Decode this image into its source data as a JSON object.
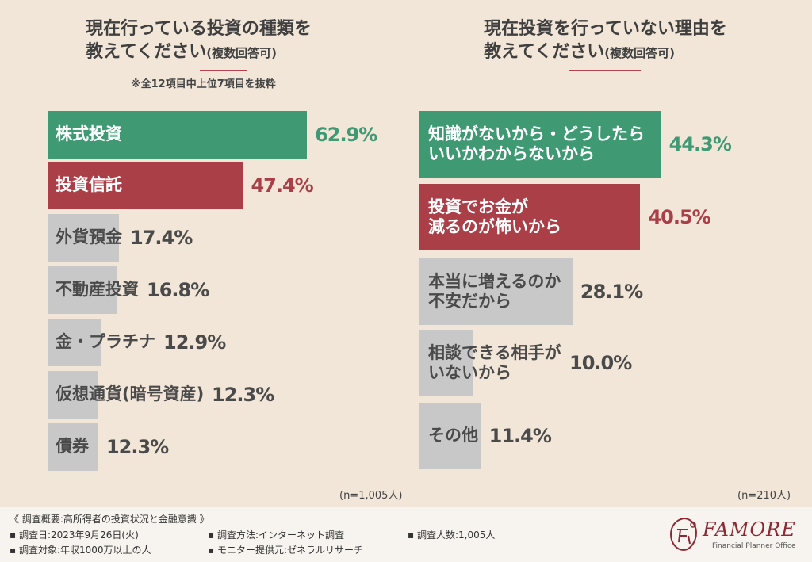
{
  "left": {
    "title_line1": "現在行っている投資の種類を",
    "title_line2": "教えてください",
    "title_sub": "(複数回答可)",
    "note": "※全12項目中上位7項目を抜粋",
    "n_label": "(n=1,005人)"
  },
  "right": {
    "title_line1": "現在投資を行っていない理由を",
    "title_line2": "教えてください",
    "title_sub": "(複数回答可)",
    "n_label": "(n=210人)"
  },
  "colors": {
    "green": "#3f9a74",
    "red": "#ab3f48",
    "gray": "#c8c8c8",
    "text": "#4a4a4a"
  },
  "chart_data": [
    {
      "type": "bar",
      "orientation": "horizontal",
      "categories": [
        "株式投資",
        "投資信託",
        "外貨預金",
        "不動産投資",
        "金・プラチナ",
        "仮想通貨(暗号資産)",
        "債券"
      ],
      "values": [
        62.9,
        47.4,
        17.4,
        16.8,
        12.9,
        12.3,
        12.3
      ],
      "value_labels": [
        "62.9%",
        "47.4%",
        "17.4%",
        "16.8%",
        "12.9%",
        "12.3%",
        "12.3%"
      ]
    },
    {
      "type": "bar",
      "orientation": "horizontal",
      "categories": [
        "知識がないから・どうしたら\nいいかわからないから",
        "投資でお金が\n減るのが怖いから",
        "本当に増えるのか\n不安だから",
        "相談できる相手が\nいないから",
        "その他"
      ],
      "values": [
        44.3,
        40.5,
        28.1,
        10.0,
        11.4
      ],
      "value_labels": [
        "44.3%",
        "40.5%",
        "28.1%",
        "10.0%",
        "11.4%"
      ]
    }
  ],
  "footer": {
    "summary": "《 調査概要:高所得者の投資状況と金融意識 》",
    "date": "▪ 調査日:2023年9月26日(火)",
    "method": "▪ 調査方法:インターネット調査",
    "count": "▪ 調査人数:1,005人",
    "target": "▪ 調査対象:年収1000万以上の人",
    "provider": "▪ モニター提供元:ゼネラルリサーチ"
  },
  "logo": {
    "brand": "FAMORE",
    "tag": "Financial Planner Office"
  }
}
